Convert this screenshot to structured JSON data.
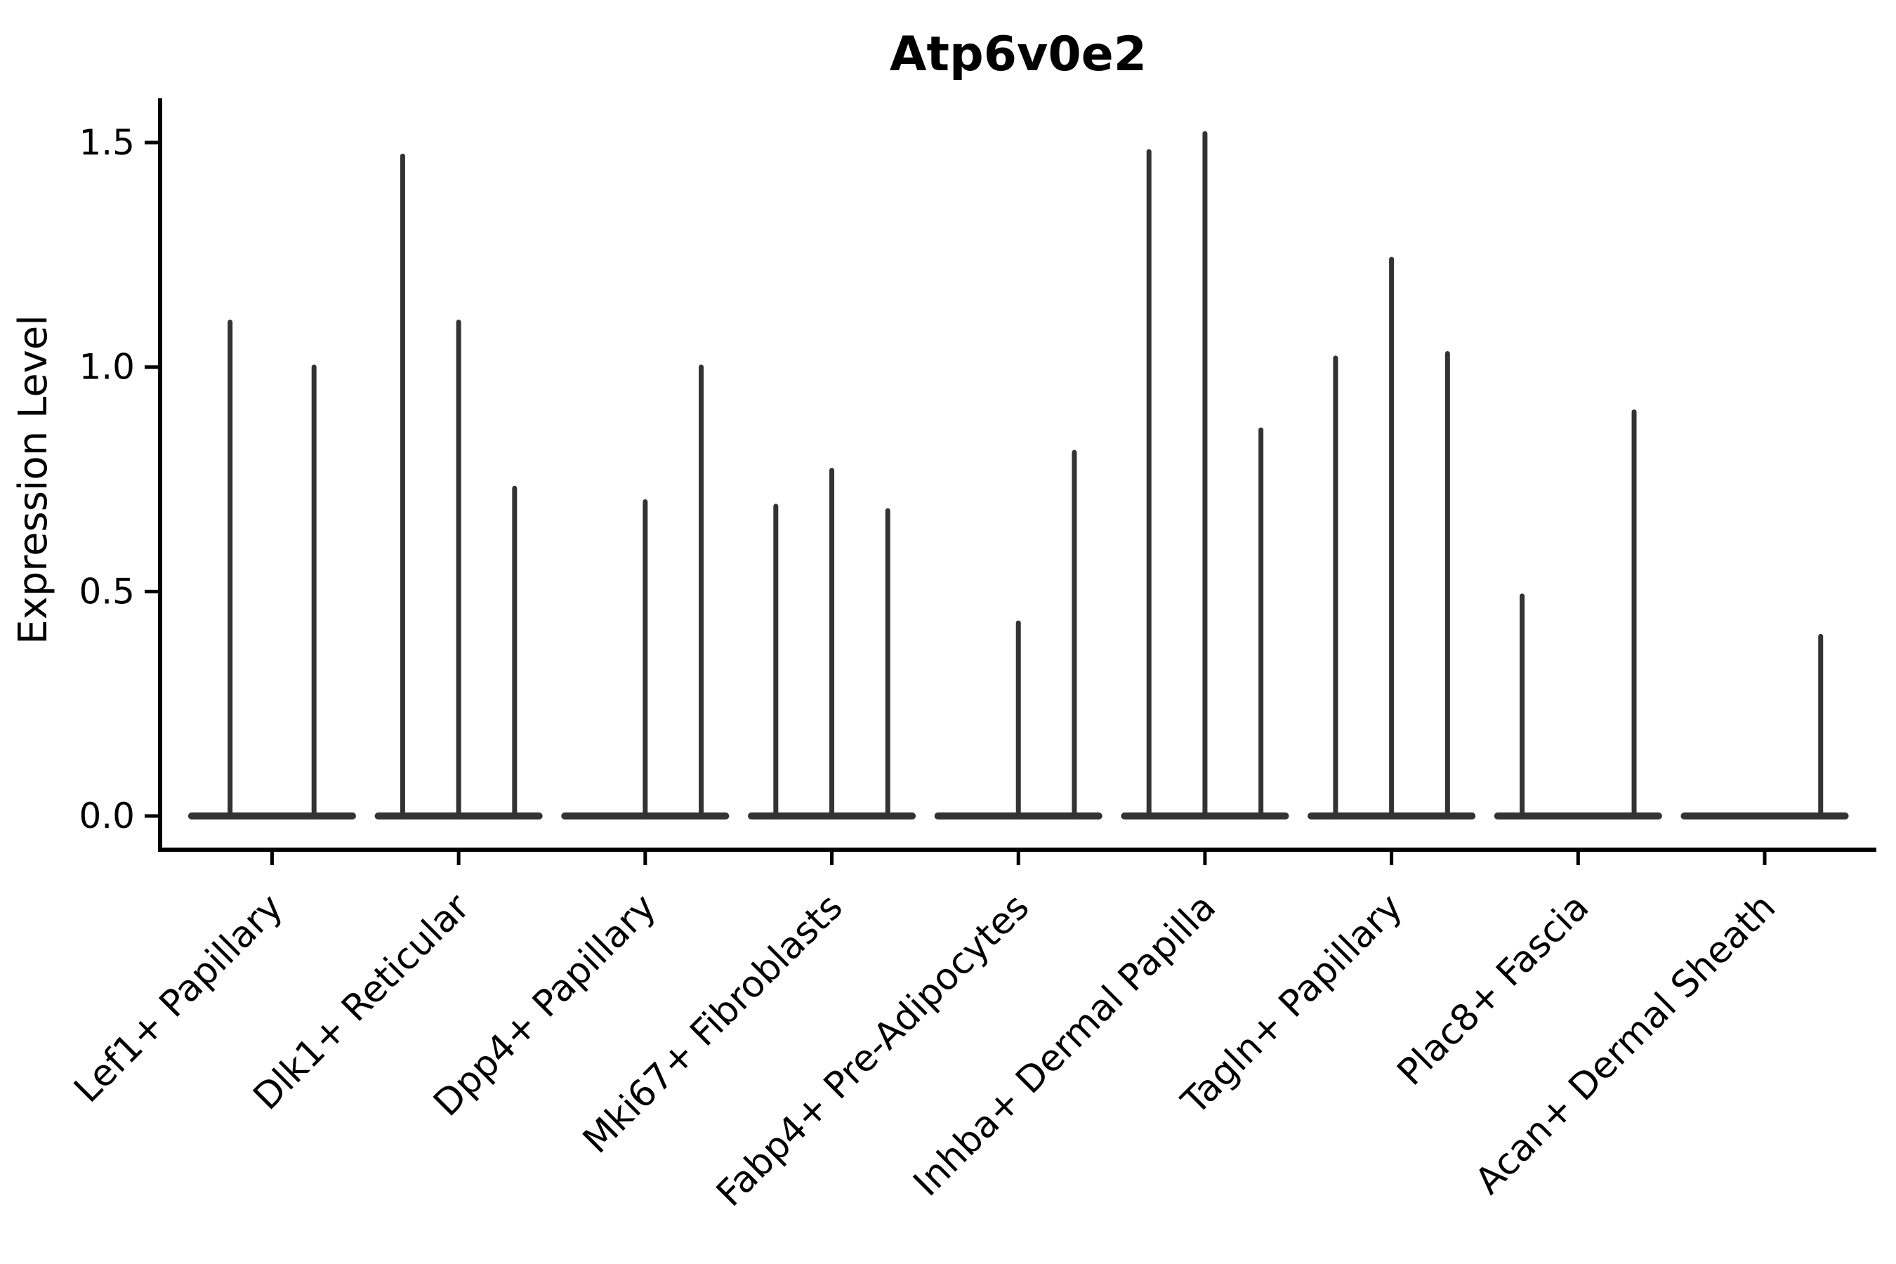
{
  "page": {
    "background": "#ffffff"
  },
  "chart_data": {
    "type": "violin",
    "title": "Atp6v0e2",
    "ylabel": "Expression Level",
    "xlabel": "",
    "legend": "none",
    "grid": false,
    "axis_color": "#000000",
    "violin_color": "#333333",
    "ytick_labels": [
      "0.0",
      "0.5",
      "1.0",
      "1.5"
    ],
    "ytick_values": [
      0.0,
      0.5,
      1.0,
      1.5
    ],
    "ylim": [
      0.0,
      1.55
    ],
    "categories": [
      "Lef1+ Papillary",
      "Dlk1+ Reticular",
      "Dpp4+ Papillary",
      "Mki67+ Fibroblasts",
      "Fabp4+ Pre-Adipocytes",
      "Inhba+ Dermal Papilla",
      "Tagln+ Papillary",
      "Plac8+ Fascia",
      "Acan+ Dermal Sheath"
    ],
    "groups": [
      {
        "category": "Lef1+ Papillary",
        "violins": [
          {
            "offset": -0.225,
            "width": 0.45,
            "peak": 1.1
          },
          {
            "offset": 0.225,
            "width": 0.45,
            "peak": 1.0
          }
        ]
      },
      {
        "category": "Dlk1+ Reticular",
        "violins": [
          {
            "offset": -0.3,
            "width": 0.3,
            "peak": 1.47
          },
          {
            "offset": 0.0,
            "width": 0.3,
            "peak": 1.1
          },
          {
            "offset": 0.3,
            "width": 0.3,
            "peak": 0.73
          }
        ]
      },
      {
        "category": "Dpp4+ Papillary",
        "violins": [
          {
            "offset": -0.3,
            "width": 0.3,
            "peak": 0.0
          },
          {
            "offset": 0.0,
            "width": 0.3,
            "peak": 0.7
          },
          {
            "offset": 0.3,
            "width": 0.3,
            "peak": 1.0
          }
        ]
      },
      {
        "category": "Mki67+ Fibroblasts",
        "violins": [
          {
            "offset": -0.3,
            "width": 0.3,
            "peak": 0.69
          },
          {
            "offset": 0.0,
            "width": 0.3,
            "peak": 0.77
          },
          {
            "offset": 0.3,
            "width": 0.3,
            "peak": 0.68
          }
        ]
      },
      {
        "category": "Fabp4+ Pre-Adipocytes",
        "violins": [
          {
            "offset": -0.3,
            "width": 0.3,
            "peak": 0.0
          },
          {
            "offset": 0.0,
            "width": 0.3,
            "peak": 0.43
          },
          {
            "offset": 0.3,
            "width": 0.3,
            "peak": 0.81
          }
        ]
      },
      {
        "category": "Inhba+ Dermal Papilla",
        "violins": [
          {
            "offset": -0.3,
            "width": 0.3,
            "peak": 1.48
          },
          {
            "offset": 0.0,
            "width": 0.3,
            "peak": 1.52
          },
          {
            "offset": 0.3,
            "width": 0.3,
            "peak": 0.86
          }
        ]
      },
      {
        "category": "Tagln+ Papillary",
        "violins": [
          {
            "offset": -0.3,
            "width": 0.3,
            "peak": 1.02
          },
          {
            "offset": 0.0,
            "width": 0.3,
            "peak": 1.24
          },
          {
            "offset": 0.3,
            "width": 0.3,
            "peak": 1.03
          }
        ]
      },
      {
        "category": "Plac8+ Fascia",
        "violins": [
          {
            "offset": -0.3,
            "width": 0.3,
            "peak": 0.49
          },
          {
            "offset": 0.0,
            "width": 0.3,
            "peak": 0.0
          },
          {
            "offset": 0.3,
            "width": 0.3,
            "peak": 0.9
          }
        ]
      },
      {
        "category": "Acan+ Dermal Sheath",
        "violins": [
          {
            "offset": -0.3,
            "width": 0.3,
            "peak": 0.0
          },
          {
            "offset": 0.0,
            "width": 0.3,
            "peak": 0.0
          },
          {
            "offset": 0.3,
            "width": 0.3,
            "peak": 0.4
          }
        ]
      }
    ]
  }
}
